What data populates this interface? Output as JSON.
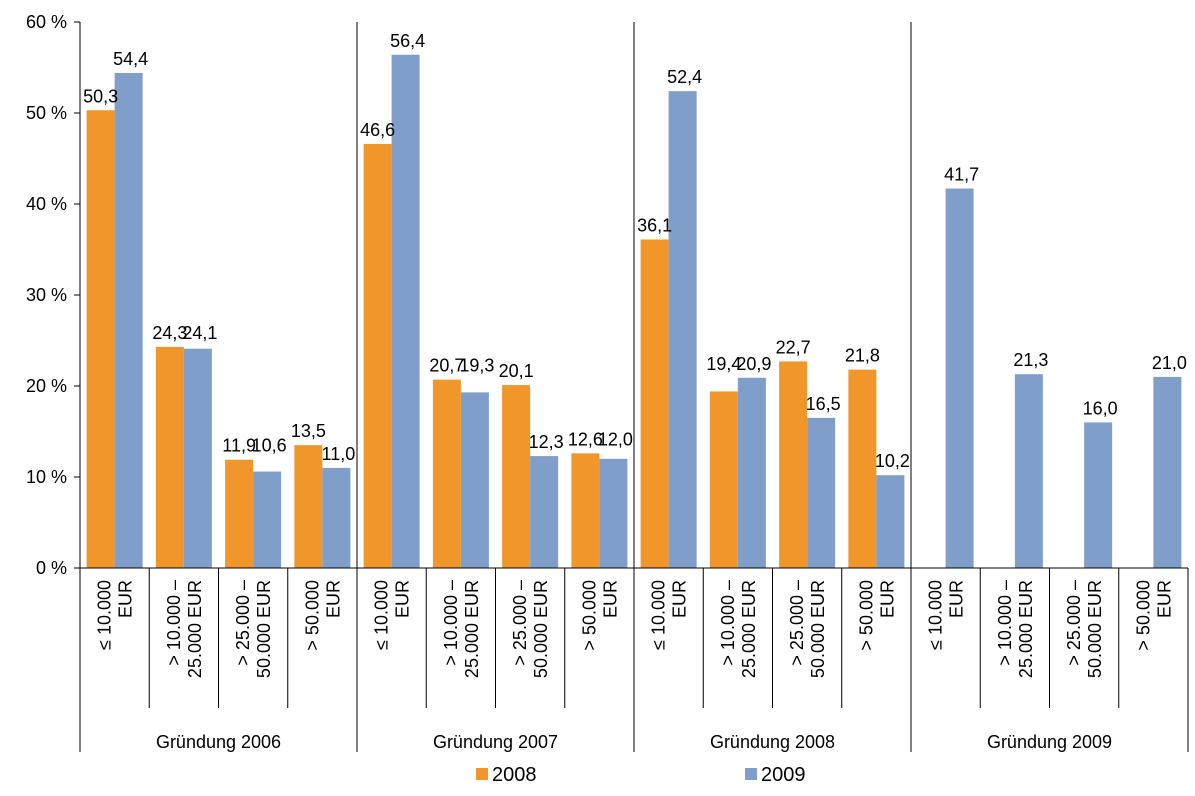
{
  "chart_data": {
    "type": "bar",
    "groups": [
      {
        "label": "Gründung 2006",
        "categories": [
          "≤ 10.000|EUR",
          "> 10.000 –|25.000 EUR",
          "> 25.000 –|50.000 EUR",
          "> 50.000|EUR"
        ]
      },
      {
        "label": "Gründung 2007",
        "categories": [
          "≤ 10.000|EUR",
          "> 10.000 –|25.000 EUR",
          "> 25.000 –|50.000 EUR",
          "> 50.000|EUR"
        ]
      },
      {
        "label": "Gründung 2008",
        "categories": [
          "≤ 10.000|EUR",
          "> 10.000 –|25.000 EUR",
          "> 25.000 –|50.000 EUR",
          "> 50.000|EUR"
        ]
      },
      {
        "label": "Gründung 2009",
        "categories": [
          "≤ 10.000|EUR",
          "> 10.000 –|25.000 EUR",
          "> 25.000 –|50.000 EUR",
          "> 50.000|EUR"
        ]
      }
    ],
    "series": [
      {
        "name": "2008",
        "color": "#F0962A",
        "values": [
          50.3,
          24.3,
          11.9,
          13.5,
          46.6,
          20.7,
          20.1,
          12.6,
          36.1,
          19.4,
          22.7,
          21.8,
          null,
          null,
          null,
          null
        ],
        "labels": [
          "50,3",
          "24,3",
          "11,9",
          "13,5",
          "46,6",
          "20,7",
          "20,1",
          "12,6",
          "36,1",
          "19,4",
          "22,7",
          "21,8",
          null,
          null,
          null,
          null
        ]
      },
      {
        "name": "2009",
        "color": "#7F9FCA",
        "values": [
          54.4,
          24.1,
          10.6,
          11.0,
          56.4,
          19.3,
          12.3,
          12.0,
          52.4,
          20.9,
          16.5,
          10.2,
          41.7,
          21.3,
          16.0,
          21.0
        ],
        "labels": [
          "54,4",
          "24,1",
          "10,6",
          "11,0",
          "56,4",
          "19,3",
          "12,3",
          "12,0",
          "52,4",
          "20,9",
          "16,5",
          "10,2",
          "41,7",
          "21,3",
          "16,0",
          "21,0"
        ]
      }
    ],
    "ylim": [
      0,
      60
    ],
    "yticks": [
      0,
      10,
      20,
      30,
      40,
      50,
      60
    ],
    "ytick_labels": [
      "0 %",
      "10 %",
      "20 %",
      "30 %",
      "40 %",
      "50 %",
      "60 %"
    ],
    "legend_position": "bottom",
    "grid": false
  }
}
